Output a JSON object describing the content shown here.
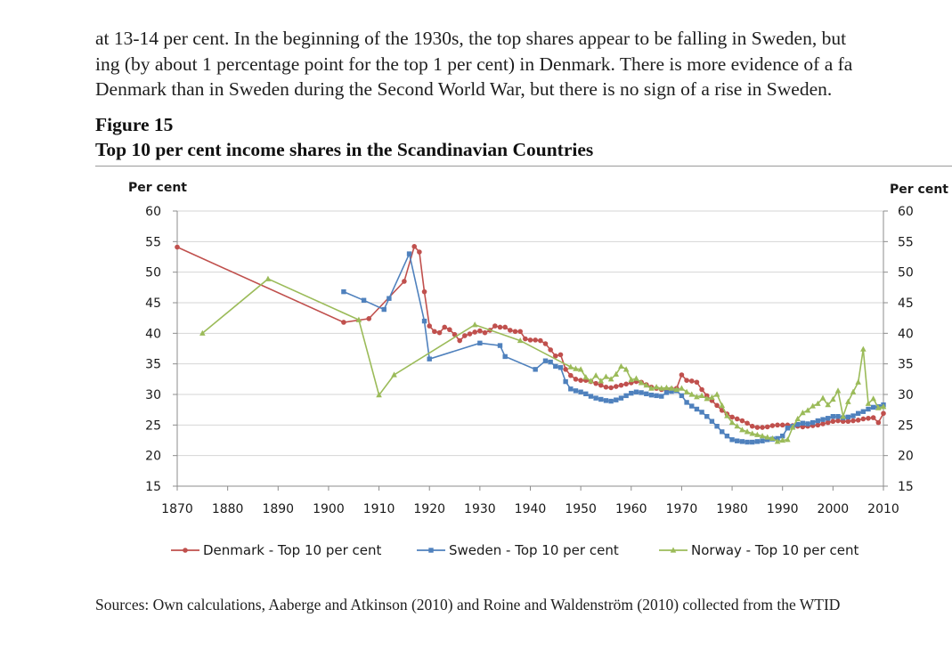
{
  "text": {
    "lines": [
      "at 13-14 per cent. In the beginning of the 1930s, the top shares appear to be falling in Sweden, but",
      "ing (by about 1 percentage point for the top 1 per cent) in Denmark. There is more evidence of a fa",
      "Denmark than in Sweden during the Second World War, but there is no sign of a rise in Sweden."
    ],
    "figure_label": "Figure 15",
    "figure_title": "Top 10 per cent income shares in the Scandinavian Countries",
    "sources": "Sources: Own calculations, Aaberge and Atkinson (2010) and Roine and Waldenström (2010) collected from the WTID"
  },
  "chart_data": {
    "type": "line",
    "title": "Top 10 per cent income shares in the Scandinavian Countries",
    "ylabel_left": "Per cent",
    "ylabel_right": "Per cent",
    "ylim": [
      15,
      60
    ],
    "xlim": [
      1870,
      2010
    ],
    "yticks": [
      15,
      20,
      25,
      30,
      35,
      40,
      45,
      50,
      55,
      60
    ],
    "xticks": [
      1870,
      1880,
      1890,
      1900,
      1910,
      1920,
      1930,
      1940,
      1950,
      1960,
      1970,
      1980,
      1990,
      2000,
      2010
    ],
    "grid": true,
    "legend_position": "bottom",
    "series": [
      {
        "name": "Denmark - Top 10 per cent",
        "color": "#c0504d",
        "marker": "circle",
        "points": [
          [
            1870,
            54.1
          ],
          [
            1903,
            41.8
          ],
          [
            1908,
            42.4
          ],
          [
            1915,
            48.5
          ],
          [
            1917,
            54.2
          ],
          [
            1918,
            53.3
          ],
          [
            1919,
            46.8
          ],
          [
            1920,
            41.2
          ],
          [
            1921,
            40.3
          ],
          [
            1922,
            40.1
          ],
          [
            1923,
            41.0
          ],
          [
            1924,
            40.6
          ],
          [
            1925,
            39.8
          ],
          [
            1926,
            38.8
          ],
          [
            1927,
            39.6
          ],
          [
            1928,
            39.9
          ],
          [
            1929,
            40.2
          ],
          [
            1930,
            40.4
          ],
          [
            1931,
            40.1
          ],
          [
            1932,
            40.5
          ],
          [
            1933,
            41.2
          ],
          [
            1934,
            41.0
          ],
          [
            1935,
            41.0
          ],
          [
            1936,
            40.5
          ],
          [
            1937,
            40.3
          ],
          [
            1938,
            40.3
          ],
          [
            1939,
            39.1
          ],
          [
            1940,
            38.9
          ],
          [
            1941,
            38.9
          ],
          [
            1942,
            38.8
          ],
          [
            1943,
            38.3
          ],
          [
            1944,
            37.3
          ],
          [
            1945,
            36.3
          ],
          [
            1946,
            36.5
          ],
          [
            1947,
            34.1
          ],
          [
            1948,
            33.1
          ],
          [
            1949,
            32.5
          ],
          [
            1950,
            32.3
          ],
          [
            1951,
            32.3
          ],
          [
            1952,
            32.1
          ],
          [
            1953,
            31.8
          ],
          [
            1954,
            31.5
          ],
          [
            1955,
            31.2
          ],
          [
            1956,
            31.1
          ],
          [
            1957,
            31.3
          ],
          [
            1958,
            31.5
          ],
          [
            1959,
            31.7
          ],
          [
            1960,
            31.9
          ],
          [
            1961,
            32.1
          ],
          [
            1962,
            32.0
          ],
          [
            1963,
            31.6
          ],
          [
            1964,
            31.2
          ],
          [
            1965,
            31.0
          ],
          [
            1966,
            30.8
          ],
          [
            1967,
            30.7
          ],
          [
            1968,
            30.9
          ],
          [
            1969,
            31.0
          ],
          [
            1970,
            33.2
          ],
          [
            1971,
            32.3
          ],
          [
            1972,
            32.2
          ],
          [
            1973,
            32.0
          ],
          [
            1974,
            30.8
          ],
          [
            1975,
            29.8
          ],
          [
            1976,
            29.0
          ],
          [
            1977,
            28.2
          ],
          [
            1978,
            27.4
          ],
          [
            1979,
            26.8
          ],
          [
            1980,
            26.3
          ],
          [
            1981,
            26.0
          ],
          [
            1982,
            25.7
          ],
          [
            1983,
            25.3
          ],
          [
            1984,
            24.8
          ],
          [
            1985,
            24.6
          ],
          [
            1986,
            24.6
          ],
          [
            1987,
            24.7
          ],
          [
            1988,
            24.9
          ],
          [
            1989,
            25.0
          ],
          [
            1990,
            25.0
          ],
          [
            1991,
            25.0
          ],
          [
            1992,
            24.9
          ],
          [
            1993,
            24.8
          ],
          [
            1994,
            24.7
          ],
          [
            1995,
            24.8
          ],
          [
            1996,
            24.9
          ],
          [
            1997,
            25.0
          ],
          [
            1998,
            25.2
          ],
          [
            1999,
            25.4
          ],
          [
            2000,
            25.6
          ],
          [
            2001,
            25.7
          ],
          [
            2002,
            25.6
          ],
          [
            2003,
            25.6
          ],
          [
            2004,
            25.7
          ],
          [
            2005,
            25.8
          ],
          [
            2006,
            26.0
          ],
          [
            2007,
            26.1
          ],
          [
            2008,
            26.2
          ],
          [
            2009,
            25.4
          ],
          [
            2010,
            26.9
          ]
        ]
      },
      {
        "name": "Sweden - Top 10 per cent",
        "color": "#4f81bd",
        "marker": "square",
        "points": [
          [
            1903,
            46.8
          ],
          [
            1907,
            45.4
          ],
          [
            1911,
            43.9
          ],
          [
            1912,
            45.7
          ],
          [
            1916,
            53.0
          ],
          [
            1919,
            42.0
          ],
          [
            1920,
            35.8
          ],
          [
            1930,
            38.4
          ],
          [
            1934,
            38.0
          ],
          [
            1935,
            36.2
          ],
          [
            1941,
            34.1
          ],
          [
            1943,
            35.5
          ],
          [
            1944,
            35.3
          ],
          [
            1945,
            34.6
          ],
          [
            1946,
            34.4
          ],
          [
            1947,
            32.1
          ],
          [
            1948,
            30.9
          ],
          [
            1949,
            30.6
          ],
          [
            1950,
            30.4
          ],
          [
            1951,
            30.1
          ],
          [
            1952,
            29.7
          ],
          [
            1953,
            29.4
          ],
          [
            1954,
            29.2
          ],
          [
            1955,
            29.0
          ],
          [
            1956,
            28.9
          ],
          [
            1957,
            29.1
          ],
          [
            1958,
            29.4
          ],
          [
            1959,
            29.8
          ],
          [
            1960,
            30.2
          ],
          [
            1961,
            30.4
          ],
          [
            1962,
            30.3
          ],
          [
            1963,
            30.1
          ],
          [
            1964,
            29.9
          ],
          [
            1965,
            29.8
          ],
          [
            1966,
            29.7
          ],
          [
            1967,
            30.3
          ],
          [
            1968,
            30.5
          ],
          [
            1969,
            30.6
          ],
          [
            1970,
            29.8
          ],
          [
            1971,
            28.7
          ],
          [
            1972,
            28.1
          ],
          [
            1973,
            27.6
          ],
          [
            1974,
            27.1
          ],
          [
            1975,
            26.4
          ],
          [
            1976,
            25.6
          ],
          [
            1977,
            24.8
          ],
          [
            1978,
            23.9
          ],
          [
            1979,
            23.2
          ],
          [
            1980,
            22.6
          ],
          [
            1981,
            22.4
          ],
          [
            1982,
            22.3
          ],
          [
            1983,
            22.2
          ],
          [
            1984,
            22.2
          ],
          [
            1985,
            22.3
          ],
          [
            1986,
            22.4
          ],
          [
            1987,
            22.6
          ],
          [
            1988,
            22.7
          ],
          [
            1989,
            22.8
          ],
          [
            1990,
            23.2
          ],
          [
            1991,
            24.5
          ],
          [
            1992,
            24.8
          ],
          [
            1993,
            25.1
          ],
          [
            1994,
            25.3
          ],
          [
            1995,
            25.2
          ],
          [
            1996,
            25.4
          ],
          [
            1997,
            25.7
          ],
          [
            1998,
            25.9
          ],
          [
            1999,
            26.1
          ],
          [
            2000,
            26.4
          ],
          [
            2001,
            26.4
          ],
          [
            2002,
            26.2
          ],
          [
            2003,
            26.3
          ],
          [
            2004,
            26.5
          ],
          [
            2005,
            26.9
          ],
          [
            2006,
            27.2
          ],
          [
            2007,
            27.6
          ],
          [
            2008,
            27.9
          ],
          [
            2009,
            28.0
          ],
          [
            2010,
            28.3
          ]
        ]
      },
      {
        "name": "Norway - Top 10 per cent",
        "color": "#9bbb59",
        "marker": "triangle",
        "points": [
          [
            1875,
            40.0
          ],
          [
            1888,
            48.9
          ],
          [
            1906,
            42.2
          ],
          [
            1910,
            29.9
          ],
          [
            1913,
            33.2
          ],
          [
            1929,
            41.4
          ],
          [
            1938,
            38.8
          ],
          [
            1948,
            34.5
          ],
          [
            1949,
            34.2
          ],
          [
            1950,
            34.1
          ],
          [
            1951,
            32.8
          ],
          [
            1952,
            32.2
          ],
          [
            1953,
            33.1
          ],
          [
            1954,
            32.2
          ],
          [
            1955,
            32.9
          ],
          [
            1956,
            32.5
          ],
          [
            1957,
            33.3
          ],
          [
            1958,
            34.6
          ],
          [
            1959,
            34.1
          ],
          [
            1960,
            32.4
          ],
          [
            1961,
            32.6
          ],
          [
            1962,
            31.9
          ],
          [
            1963,
            31.5
          ],
          [
            1964,
            31.0
          ],
          [
            1965,
            31.2
          ],
          [
            1966,
            31.0
          ],
          [
            1967,
            31.1
          ],
          [
            1968,
            31.0
          ],
          [
            1969,
            30.8
          ],
          [
            1970,
            31.0
          ],
          [
            1971,
            30.4
          ],
          [
            1972,
            30.0
          ],
          [
            1973,
            29.6
          ],
          [
            1974,
            29.8
          ],
          [
            1975,
            29.3
          ],
          [
            1976,
            29.5
          ],
          [
            1977,
            30.0
          ],
          [
            1978,
            28.2
          ],
          [
            1979,
            26.5
          ],
          [
            1980,
            25.4
          ],
          [
            1981,
            24.8
          ],
          [
            1982,
            24.2
          ],
          [
            1983,
            23.9
          ],
          [
            1984,
            23.6
          ],
          [
            1985,
            23.4
          ],
          [
            1986,
            23.2
          ],
          [
            1987,
            23.0
          ],
          [
            1988,
            22.8
          ],
          [
            1989,
            22.3
          ],
          [
            1990,
            22.5
          ],
          [
            1991,
            22.6
          ],
          [
            1992,
            24.6
          ],
          [
            1993,
            26.0
          ],
          [
            1994,
            27.0
          ],
          [
            1995,
            27.4
          ],
          [
            1996,
            28.1
          ],
          [
            1997,
            28.5
          ],
          [
            1998,
            29.4
          ],
          [
            1999,
            28.3
          ],
          [
            2000,
            29.2
          ],
          [
            2001,
            30.6
          ],
          [
            2002,
            26.4
          ],
          [
            2003,
            28.8
          ],
          [
            2004,
            30.4
          ],
          [
            2005,
            32.0
          ],
          [
            2006,
            37.4
          ],
          [
            2007,
            28.5
          ],
          [
            2008,
            29.3
          ],
          [
            2009,
            27.8
          ],
          [
            2010,
            28.0
          ]
        ]
      }
    ]
  }
}
